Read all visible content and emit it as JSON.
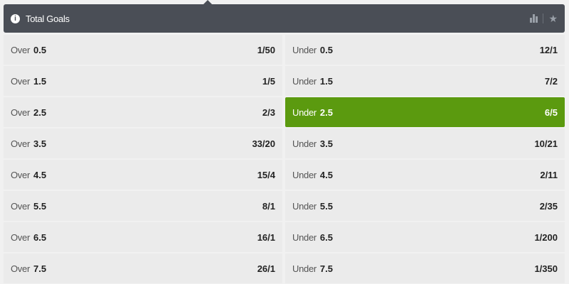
{
  "header": {
    "title": "Total Goals",
    "info_icon": "info-icon",
    "stats_icon": "bar-chart-icon",
    "favorite_icon": "star-icon"
  },
  "colors": {
    "header_bg": "#4a4e56",
    "selected": "#5b9a0f",
    "cell_bg": "#ebebeb"
  },
  "rows": [
    {
      "over": {
        "label": "Over",
        "line": "0.5",
        "odds": "1/50"
      },
      "under": {
        "label": "Under",
        "line": "0.5",
        "odds": "12/1"
      }
    },
    {
      "over": {
        "label": "Over",
        "line": "1.5",
        "odds": "1/5"
      },
      "under": {
        "label": "Under",
        "line": "1.5",
        "odds": "7/2"
      }
    },
    {
      "over": {
        "label": "Over",
        "line": "2.5",
        "odds": "2/3"
      },
      "under": {
        "label": "Under",
        "line": "2.5",
        "odds": "6/5",
        "selected": true
      }
    },
    {
      "over": {
        "label": "Over",
        "line": "3.5",
        "odds": "33/20"
      },
      "under": {
        "label": "Under",
        "line": "3.5",
        "odds": "10/21"
      }
    },
    {
      "over": {
        "label": "Over",
        "line": "4.5",
        "odds": "15/4"
      },
      "under": {
        "label": "Under",
        "line": "4.5",
        "odds": "2/11"
      }
    },
    {
      "over": {
        "label": "Over",
        "line": "5.5",
        "odds": "8/1"
      },
      "under": {
        "label": "Under",
        "line": "5.5",
        "odds": "2/35"
      }
    },
    {
      "over": {
        "label": "Over",
        "line": "6.5",
        "odds": "16/1"
      },
      "under": {
        "label": "Under",
        "line": "6.5",
        "odds": "1/200"
      }
    },
    {
      "over": {
        "label": "Over",
        "line": "7.5",
        "odds": "26/1"
      },
      "under": {
        "label": "Under",
        "line": "7.5",
        "odds": "1/350"
      }
    }
  ]
}
